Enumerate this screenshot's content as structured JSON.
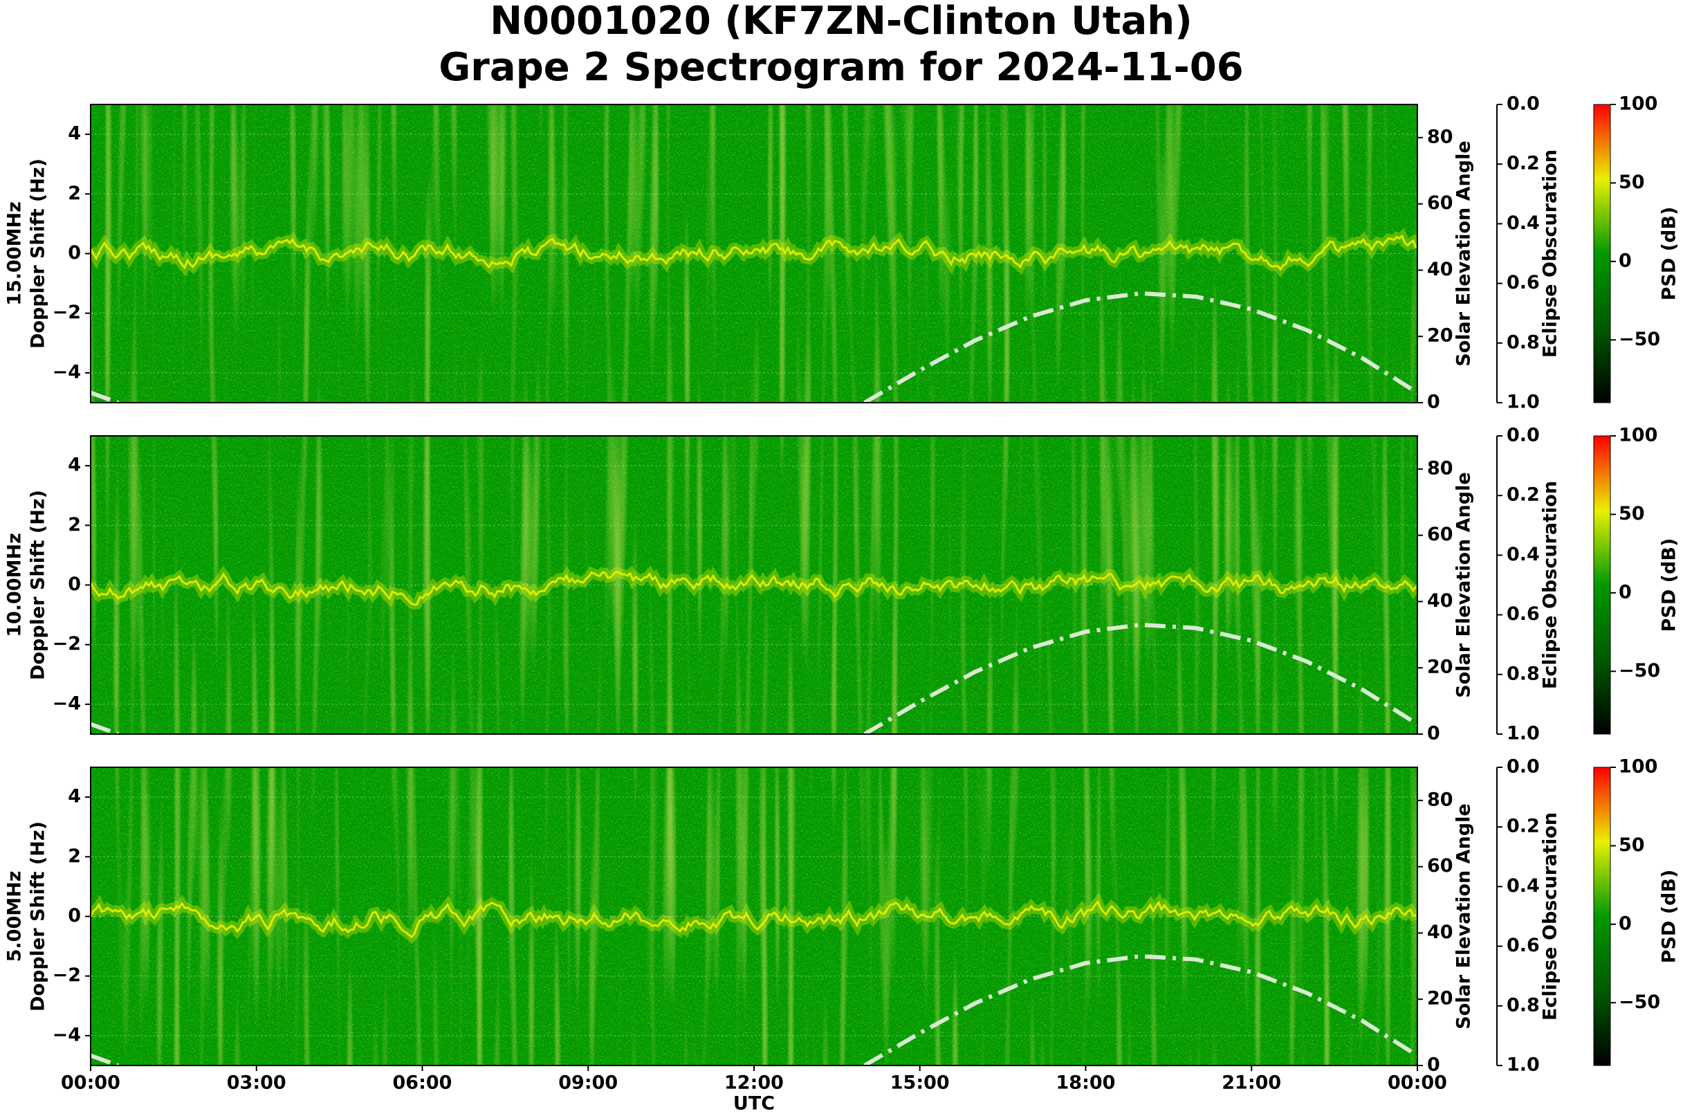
{
  "title": [
    "N0001020 (KF7ZN-Clinton Utah)",
    "Grape 2 Spectrogram for 2024-11-06"
  ],
  "chart_data": [
    {
      "type": "spectrogram",
      "ylabel": [
        "15.00MHz",
        "Doppler Shift (Hz)"
      ],
      "xlim": [
        0,
        24
      ],
      "ylim": [
        -5,
        5
      ],
      "yticks": [
        {
          "value": -4,
          "label": "−4"
        },
        {
          "value": -2,
          "label": "−2"
        },
        0,
        2,
        4
      ],
      "grid": true,
      "y2label": "Solar Elevation Angle",
      "y2lim": [
        0,
        90
      ],
      "y2ticks": [
        0,
        20,
        40,
        60,
        80
      ],
      "series": [
        {
          "name": "Solar Elevation",
          "axis": "y2",
          "color": "#d9ead3",
          "x": [
            0,
            0.5,
            7,
            14,
            15,
            16,
            17,
            18,
            19,
            20,
            21,
            22,
            23,
            24
          ],
          "values": [
            3,
            0,
            null,
            0,
            9.8,
            18.8,
            26,
            30.9,
            33,
            32,
            28.2,
            21.9,
            13.5,
            3
          ]
        }
      ],
      "y3label": "Eclipse Obscuration",
      "y3lim": [
        1,
        0
      ],
      "y3ticks": [
        {
          "value": 0,
          "label": "0.0"
        },
        {
          "value": 0.2,
          "label": "0.2"
        },
        {
          "value": 0.4,
          "label": "0.4"
        },
        {
          "value": 0.6,
          "label": "0.6"
        },
        {
          "value": 0.8,
          "label": "0.8"
        },
        {
          "value": 1,
          "label": "1.0"
        }
      ],
      "colorbar_label": "PSD (dB)",
      "clim": [
        -90,
        100
      ],
      "cticks": [
        {
          "value": -50,
          "label": "−50"
        },
        0,
        50,
        100
      ],
      "cmap": [
        "#000000",
        "#005a00",
        "#009900",
        "#e8f000",
        "#ff0000"
      ]
    },
    {
      "type": "spectrogram",
      "ylabel": [
        "10.00MHz",
        "Doppler Shift (Hz)"
      ],
      "xlim": [
        0,
        24
      ],
      "ylim": [
        -5,
        5
      ],
      "yticks": [
        {
          "value": -4,
          "label": "−4"
        },
        {
          "value": -2,
          "label": "−2"
        },
        0,
        2,
        4
      ],
      "grid": true,
      "y2label": "Solar Elevation Angle",
      "y2lim": [
        0,
        90
      ],
      "y2ticks": [
        0,
        20,
        40,
        60,
        80
      ],
      "series": [
        {
          "name": "Solar Elevation",
          "axis": "y2",
          "color": "#d9ead3",
          "x": [
            0,
            0.5,
            7,
            14,
            15,
            16,
            17,
            18,
            19,
            20,
            21,
            22,
            23,
            24
          ],
          "values": [
            3,
            0,
            null,
            0,
            9.8,
            18.8,
            26,
            30.9,
            33,
            32,
            28.2,
            21.9,
            13.5,
            3
          ]
        }
      ],
      "y3label": "Eclipse Obscuration",
      "y3lim": [
        1,
        0
      ],
      "y3ticks": [
        {
          "value": 0,
          "label": "0.0"
        },
        {
          "value": 0.2,
          "label": "0.2"
        },
        {
          "value": 0.4,
          "label": "0.4"
        },
        {
          "value": 0.6,
          "label": "0.6"
        },
        {
          "value": 0.8,
          "label": "0.8"
        },
        {
          "value": 1,
          "label": "1.0"
        }
      ],
      "colorbar_label": "PSD (dB)",
      "clim": [
        -90,
        100
      ],
      "cticks": [
        {
          "value": -50,
          "label": "−50"
        },
        0,
        50,
        100
      ],
      "cmap": [
        "#000000",
        "#005a00",
        "#009900",
        "#e8f000",
        "#ff0000"
      ]
    },
    {
      "type": "spectrogram",
      "ylabel": [
        "5.00MHz",
        "Doppler Shift (Hz)"
      ],
      "xlim": [
        0,
        24
      ],
      "xlabel": "UTC",
      "xticks": [
        {
          "value": 0,
          "label": "00:00"
        },
        {
          "value": 3,
          "label": "03:00"
        },
        {
          "value": 6,
          "label": "06:00"
        },
        {
          "value": 9,
          "label": "09:00"
        },
        {
          "value": 12,
          "label": "12:00"
        },
        {
          "value": 15,
          "label": "15:00"
        },
        {
          "value": 18,
          "label": "18:00"
        },
        {
          "value": 21,
          "label": "21:00"
        },
        {
          "value": 24,
          "label": "00:00"
        }
      ],
      "ylim": [
        -5,
        5
      ],
      "yticks": [
        {
          "value": -4,
          "label": "−4"
        },
        {
          "value": -2,
          "label": "−2"
        },
        0,
        2,
        4
      ],
      "grid": true,
      "y2label": "Solar Elevation Angle",
      "y2lim": [
        0,
        90
      ],
      "y2ticks": [
        0,
        20,
        40,
        60,
        80
      ],
      "series": [
        {
          "name": "Solar Elevation",
          "axis": "y2",
          "color": "#d9ead3",
          "x": [
            0,
            0.5,
            7,
            14,
            15,
            16,
            17,
            18,
            19,
            20,
            21,
            22,
            23,
            24
          ],
          "values": [
            3,
            0,
            null,
            0,
            9.8,
            18.8,
            26,
            30.9,
            33,
            32,
            28.2,
            21.9,
            13.5,
            3
          ]
        }
      ],
      "y3label": "Eclipse Obscuration",
      "y3lim": [
        1,
        0
      ],
      "y3ticks": [
        {
          "value": 0,
          "label": "0.0"
        },
        {
          "value": 0.2,
          "label": "0.2"
        },
        {
          "value": 0.4,
          "label": "0.4"
        },
        {
          "value": 0.6,
          "label": "0.6"
        },
        {
          "value": 0.8,
          "label": "0.8"
        },
        {
          "value": 1,
          "label": "1.0"
        }
      ],
      "colorbar_label": "PSD (dB)",
      "clim": [
        -90,
        100
      ],
      "cticks": [
        {
          "value": -50,
          "label": "−50"
        },
        0,
        50,
        100
      ],
      "cmap": [
        "#000000",
        "#005a00",
        "#009900",
        "#e8f000",
        "#ff0000"
      ]
    }
  ]
}
